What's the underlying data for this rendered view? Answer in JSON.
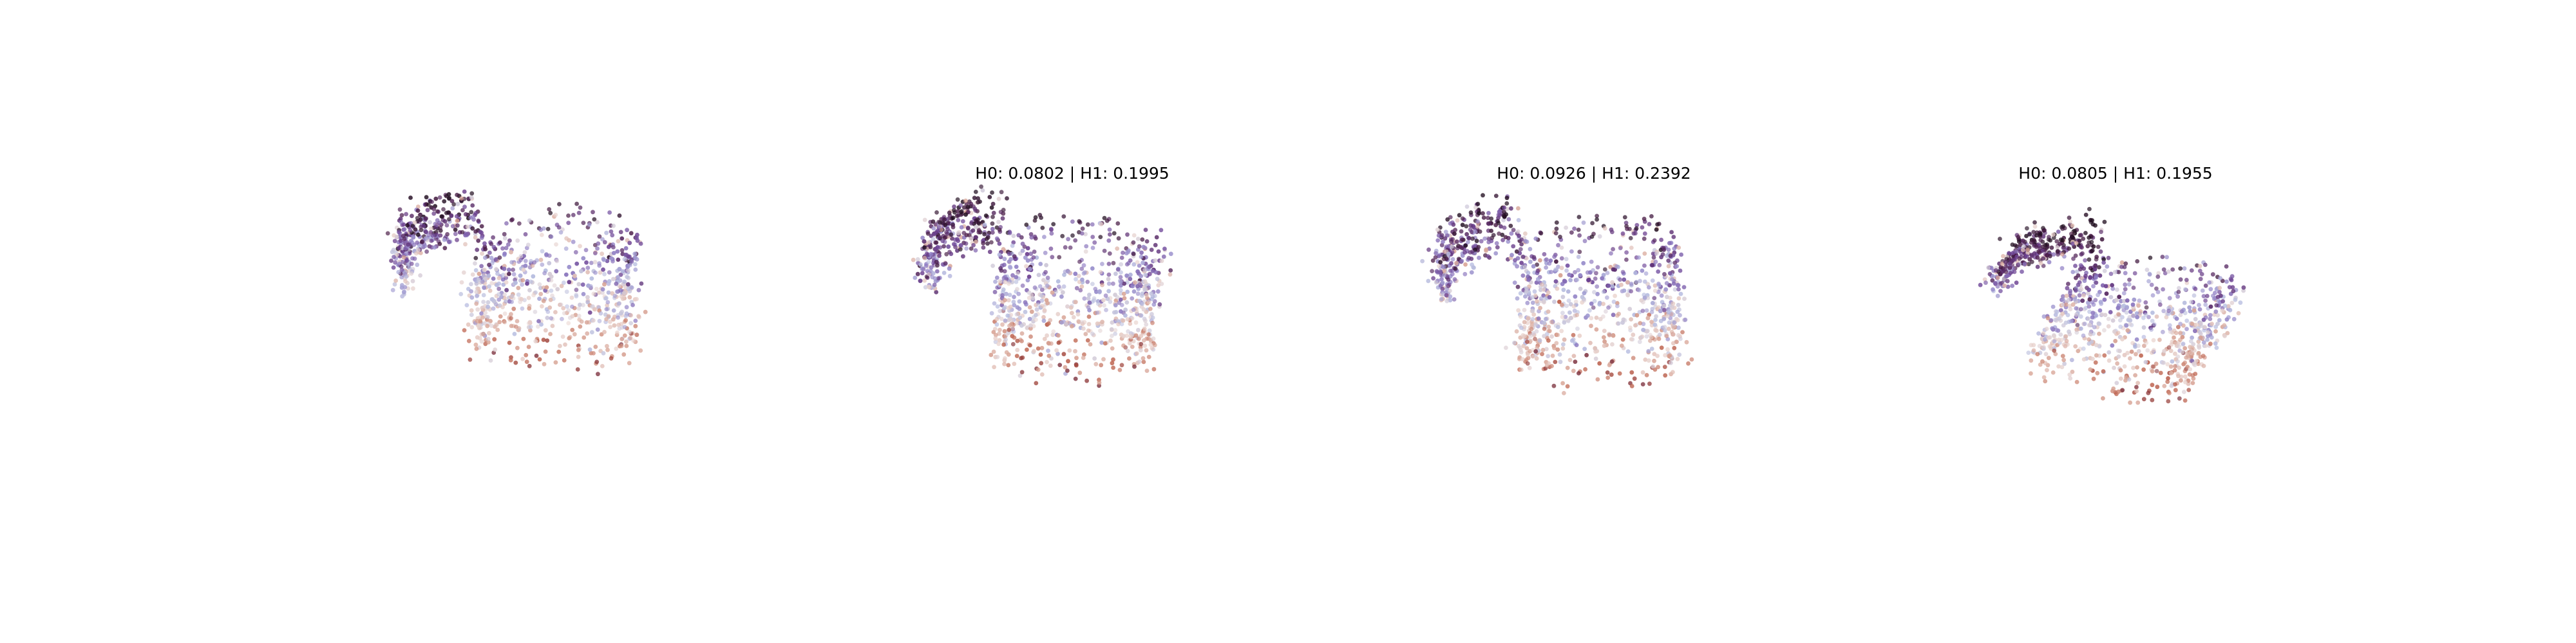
{
  "figure": {
    "panel_count": 4,
    "background": "#ffffff",
    "colormap_stops": [
      "#1f0c1e",
      "#4a1b47",
      "#6b3f8f",
      "#8e7cc3",
      "#b6bde0",
      "#e8d4d0",
      "#d49a8a",
      "#b8553f",
      "#7a2d3a"
    ]
  },
  "chart_data": [
    {
      "type": "scatter",
      "title": "",
      "description_shape": "cylindrical point cloud with open left arc and dense right cylinder",
      "axis": "off",
      "grid": false,
      "xlim": [
        -1.6,
        1.6
      ],
      "ylim": [
        -1.3,
        1.3
      ],
      "point_count": 1100
    },
    {
      "type": "scatter",
      "title": "H0: 0.0802 | H1: 0.1995",
      "axis": "off",
      "grid": false,
      "xlim": [
        -1.6,
        1.6
      ],
      "ylim": [
        -1.3,
        1.3
      ],
      "point_count": 1100
    },
    {
      "type": "scatter",
      "title": "H0: 0.0926 | H1: 0.2392",
      "axis": "off",
      "grid": false,
      "xlim": [
        -1.6,
        1.6
      ],
      "ylim": [
        -1.3,
        1.3
      ],
      "point_count": 1100
    },
    {
      "type": "scatter",
      "title": "H0: 0.0805 | H1: 0.1955",
      "axis": "off",
      "grid": false,
      "xlim": [
        -1.6,
        1.6
      ],
      "ylim": [
        -1.3,
        1.3
      ],
      "point_count": 1100
    }
  ]
}
